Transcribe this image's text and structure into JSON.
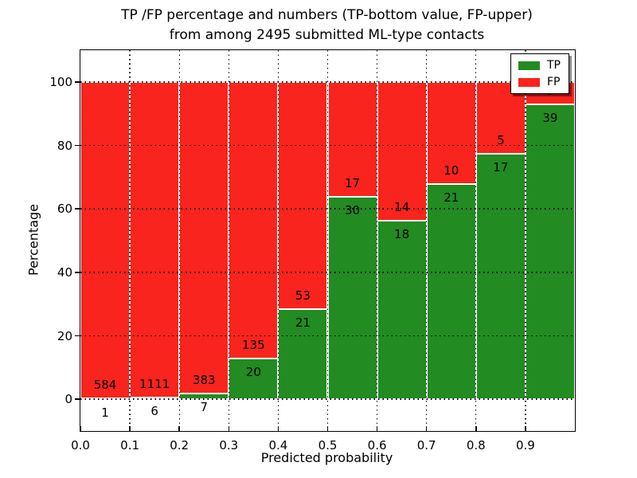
{
  "title": {
    "line1": "TP /FP percentage and numbers (TP-bottom value, FP-upper)",
    "line2": "from among 2495 submitted ML-type contacts"
  },
  "axes": {
    "ylabel": "Percentage",
    "xlabel": "Predicted probability",
    "yticks": [
      "0",
      "20",
      "40",
      "60",
      "80",
      "100"
    ],
    "xticks": [
      "0.0",
      "0.1",
      "0.2",
      "0.3",
      "0.4",
      "0.5",
      "0.6",
      "0.7",
      "0.8",
      "0.9"
    ]
  },
  "legend": {
    "position": "upper-right",
    "items": [
      {
        "label": "TP",
        "color": "#228b22"
      },
      {
        "label": "FP",
        "color": "#f9241d"
      }
    ]
  },
  "chart_data": {
    "type": "bar",
    "subtype": "stacked-normalized-to-100-percent",
    "title": "TP /FP percentage and numbers (TP-bottom value, FP-upper) from among 2495 submitted ML-type contacts",
    "xlabel": "Predicted probability",
    "ylabel": "Percentage",
    "xlim": [
      0.0,
      1.0
    ],
    "ylim": [
      -10,
      110
    ],
    "grid": "dotted-black-both-axes",
    "bin_width": 0.1,
    "bins": [
      "0.0-0.1",
      "0.1-0.2",
      "0.2-0.3",
      "0.3-0.4",
      "0.4-0.5",
      "0.5-0.6",
      "0.6-0.7",
      "0.7-0.8",
      "0.8-0.9",
      "0.9-1.0"
    ],
    "series": [
      {
        "name": "TP",
        "color": "#228b22",
        "counts": [
          1,
          6,
          7,
          20,
          21,
          30,
          18,
          21,
          17,
          39
        ]
      },
      {
        "name": "FP",
        "color": "#f9241d",
        "counts": [
          584,
          1111,
          383,
          135,
          53,
          17,
          14,
          10,
          5,
          3
        ]
      }
    ],
    "tp_percent_of_bin": [
      0.17,
      0.54,
      1.79,
      12.9,
      28.38,
      63.83,
      56.25,
      67.74,
      77.27,
      92.86
    ],
    "total_submitted": 2495,
    "bar_label_rule": "FP count printed just above TP/FP boundary, TP count printed just below",
    "legend_position": "upper right"
  }
}
